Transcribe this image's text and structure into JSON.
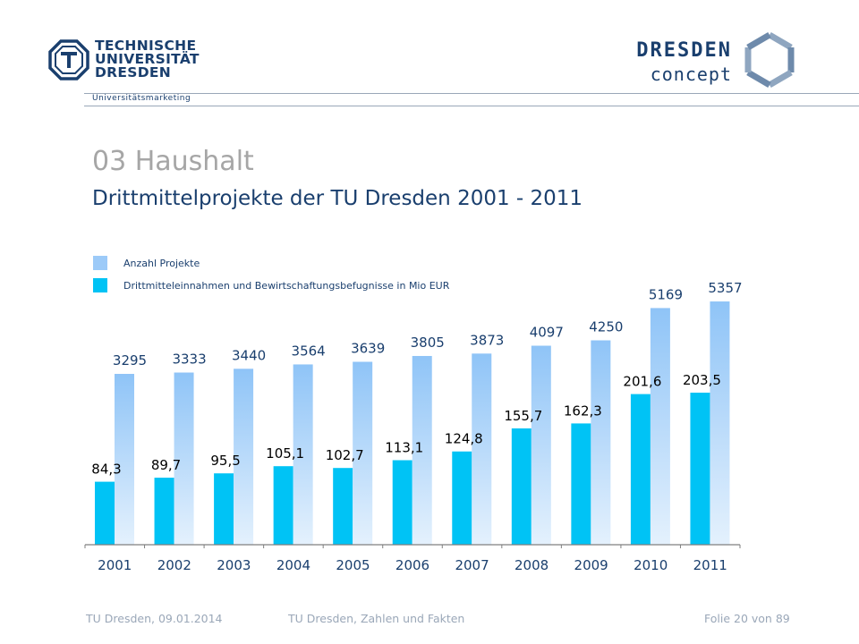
{
  "header": {
    "university_lines": [
      "TECHNISCHE",
      "UNIVERSITÄT",
      "DRESDEN"
    ],
    "department": "Universitätsmarketing",
    "partner_line1": "DRESDEN",
    "partner_line2": "concept",
    "colors": {
      "navy": "#1a3f6e",
      "grey": "#a6a6a6"
    }
  },
  "slide": {
    "title": "03 Haushalt",
    "subtitle": "Drittmittelprojekte der TU Dresden 2001 - 2011"
  },
  "chart_data": {
    "type": "bar",
    "categories": [
      "2001",
      "2002",
      "2003",
      "2004",
      "2005",
      "2006",
      "2007",
      "2008",
      "2009",
      "2010",
      "2011"
    ],
    "series": [
      {
        "name": "Drittmitteleinnahmen  und Bewirtschaftungsbefugnisse in Mio EUR",
        "values": [
          84.3,
          89.7,
          95.5,
          105.1,
          102.7,
          113.1,
          124.8,
          155.7,
          162.3,
          201.6,
          203.5
        ],
        "labels": [
          "84,3",
          "89,7",
          "95,5",
          "105,1",
          "102,7",
          "113,1",
          "124,8",
          "155,7",
          "162,3",
          "201,6",
          "203,5"
        ],
        "color": "#00c3f5"
      },
      {
        "name": "Anzahl Projekte",
        "values": [
          3295,
          3333,
          3440,
          3564,
          3639,
          3805,
          3873,
          4097,
          4250,
          5169,
          5357
        ],
        "labels": [
          "3295",
          "3333",
          "3440",
          "3564",
          "3639",
          "3805",
          "3873",
          "4097",
          "4250",
          "5169",
          "5357"
        ],
        "color": "#9ccaf8"
      }
    ],
    "legend": "top-left",
    "grid": false
  },
  "footer": {
    "left": "TU Dresden, 09.01.2014",
    "center": "TU Dresden, Zahlen und Fakten",
    "right": "Folie 20 von 89"
  }
}
